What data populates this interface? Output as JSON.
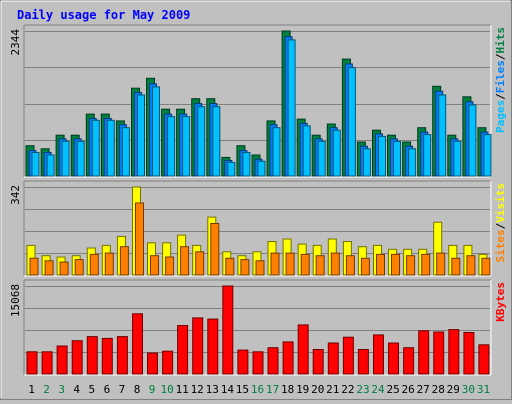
{
  "title": "Daily usage for May 2009",
  "colors": {
    "background": "#C0C0C0",
    "pages": "#00C0FF",
    "files": "#0080FF",
    "hits": "#008040",
    "visits": "#FFFF00",
    "sites": "#FF8000",
    "kbytes": "#FF0000",
    "title": "#0000FF",
    "weekend_label": "#008040",
    "weekday_label": "#000000"
  },
  "chart_data": [
    {
      "type": "bar",
      "panel": "hits-files-pages",
      "y_max_label": "2344",
      "ylim": [
        0,
        2344
      ],
      "legend": [
        {
          "label": "Pages",
          "color": "#00C0FF"
        },
        {
          "label": "Files",
          "color": "#0080FF"
        },
        {
          "label": "Hits",
          "color": "#008040"
        }
      ],
      "categories": [
        "1",
        "2",
        "3",
        "4",
        "5",
        "6",
        "7",
        "8",
        "9",
        "10",
        "11",
        "12",
        "13",
        "14",
        "15",
        "16",
        "17",
        "18",
        "19",
        "20",
        "21",
        "22",
        "23",
        "24",
        "25",
        "26",
        "27",
        "28",
        "29",
        "30",
        "31"
      ],
      "series": [
        {
          "name": "Hits",
          "values": [
            490,
            440,
            660,
            660,
            1000,
            1000,
            890,
            1420,
            1580,
            1080,
            1080,
            1250,
            1250,
            300,
            490,
            340,
            890,
            2344,
            920,
            660,
            840,
            1890,
            550,
            740,
            660,
            550,
            780,
            1450,
            660,
            1280,
            780
          ]
        },
        {
          "name": "Files",
          "values": [
            410,
            380,
            600,
            600,
            930,
            930,
            830,
            1350,
            1490,
            1000,
            1000,
            1170,
            1170,
            250,
            410,
            270,
            830,
            2250,
            850,
            600,
            780,
            1810,
            480,
            680,
            600,
            480,
            710,
            1370,
            600,
            1200,
            710
          ]
        },
        {
          "name": "Pages",
          "values": [
            380,
            340,
            560,
            560,
            900,
            900,
            780,
            1310,
            1440,
            960,
            960,
            1120,
            1120,
            220,
            380,
            240,
            780,
            2200,
            810,
            560,
            740,
            1750,
            440,
            640,
            560,
            440,
            670,
            1310,
            560,
            1150,
            670
          ]
        }
      ]
    },
    {
      "type": "bar",
      "panel": "visits-sites",
      "y_max_label": "342",
      "ylim": [
        0,
        342
      ],
      "legend": [
        {
          "label": "Sites",
          "color": "#FF8000"
        },
        {
          "label": "Visits",
          "color": "#FFFF00"
        }
      ],
      "categories": [
        "1",
        "2",
        "3",
        "4",
        "5",
        "6",
        "7",
        "8",
        "9",
        "10",
        "11",
        "12",
        "13",
        "14",
        "15",
        "16",
        "17",
        "18",
        "19",
        "20",
        "21",
        "22",
        "23",
        "24",
        "25",
        "26",
        "27",
        "28",
        "29",
        "30",
        "31"
      ],
      "series": [
        {
          "name": "Visits",
          "values": [
            115,
            75,
            70,
            75,
            105,
            115,
            150,
            342,
            125,
            125,
            155,
            115,
            225,
            90,
            75,
            90,
            130,
            140,
            120,
            115,
            140,
            130,
            110,
            115,
            100,
            100,
            100,
            205,
            115,
            115,
            80
          ]
        },
        {
          "name": "Sites",
          "values": [
            65,
            55,
            50,
            60,
            80,
            85,
            110,
            280,
            75,
            70,
            110,
            90,
            200,
            65,
            60,
            55,
            85,
            85,
            80,
            75,
            85,
            75,
            65,
            80,
            80,
            75,
            80,
            85,
            65,
            75,
            65
          ]
        }
      ]
    },
    {
      "type": "bar",
      "panel": "kbytes",
      "y_max_label": "15068",
      "ylim": [
        0,
        15068
      ],
      "legend": [
        {
          "label": "KBytes",
          "color": "#FF0000"
        }
      ],
      "categories": [
        "1",
        "2",
        "3",
        "4",
        "5",
        "6",
        "7",
        "8",
        "9",
        "10",
        "11",
        "12",
        "13",
        "14",
        "15",
        "16",
        "17",
        "18",
        "19",
        "20",
        "21",
        "22",
        "23",
        "24",
        "25",
        "26",
        "27",
        "28",
        "29",
        "30",
        "31"
      ],
      "series": [
        {
          "name": "KBytes",
          "values": [
            3800,
            3800,
            4800,
            5700,
            6400,
            6100,
            6400,
            10300,
            3600,
            3900,
            8300,
            9600,
            9400,
            15068,
            4100,
            3800,
            4500,
            5500,
            8400,
            4200,
            5300,
            6300,
            4200,
            6700,
            5300,
            4500,
            7400,
            7200,
            7600,
            7100,
            5000
          ]
        }
      ]
    }
  ],
  "weekend_days": [
    2,
    3,
    9,
    10,
    16,
    17,
    23,
    24,
    30,
    31
  ]
}
